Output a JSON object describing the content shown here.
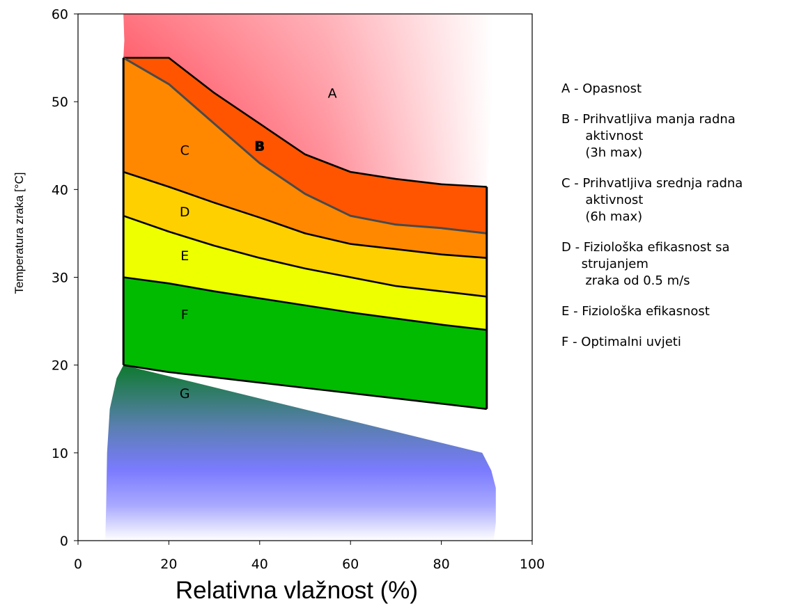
{
  "chart_data": {
    "type": "area",
    "title": "",
    "xlabel": "Relativna vlažnost (%)",
    "ylabel": "Temperatura zraka [°C]",
    "xlim": [
      0,
      100
    ],
    "ylim": [
      0,
      60
    ],
    "x_ticks": [
      "0",
      "20",
      "40",
      "60",
      "80",
      "100"
    ],
    "y_ticks": [
      "0",
      "10",
      "20",
      "30",
      "40",
      "50",
      "60"
    ],
    "grid": false,
    "legend_position": "right",
    "colors": {
      "A": "#ff2030",
      "B": "#ff5500",
      "C": "#ff8800",
      "D": "#ffd000",
      "E": "#eeff00",
      "F": "#00bb00",
      "G_top": "#117a33",
      "G_mid": "#7b7bff"
    },
    "boundaries": [
      {
        "name": "A/B",
        "points": [
          [
            10,
            55
          ],
          [
            20,
            55
          ],
          [
            30,
            51
          ],
          [
            40,
            47.5
          ],
          [
            50,
            44
          ],
          [
            60,
            42
          ],
          [
            70,
            41.2
          ],
          [
            80,
            40.6
          ],
          [
            90,
            40.3
          ]
        ]
      },
      {
        "name": "B/C",
        "points": [
          [
            10,
            55
          ],
          [
            20,
            52
          ],
          [
            30,
            47.5
          ],
          [
            40,
            43
          ],
          [
            50,
            39.5
          ],
          [
            60,
            37
          ],
          [
            70,
            36
          ],
          [
            80,
            35.6
          ],
          [
            90,
            35
          ]
        ]
      },
      {
        "name": "C/D",
        "points": [
          [
            10,
            42
          ],
          [
            20,
            40.3
          ],
          [
            30,
            38.5
          ],
          [
            40,
            36.8
          ],
          [
            50,
            35
          ],
          [
            60,
            33.8
          ],
          [
            70,
            33.2
          ],
          [
            80,
            32.6
          ],
          [
            90,
            32.2
          ]
        ]
      },
      {
        "name": "D/E",
        "points": [
          [
            10,
            37
          ],
          [
            20,
            35.2
          ],
          [
            30,
            33.6
          ],
          [
            40,
            32.2
          ],
          [
            50,
            31
          ],
          [
            60,
            30
          ],
          [
            70,
            29
          ],
          [
            80,
            28.4
          ],
          [
            90,
            27.8
          ]
        ]
      },
      {
        "name": "E/F",
        "points": [
          [
            10,
            30
          ],
          [
            20,
            29.3
          ],
          [
            30,
            28.4
          ],
          [
            40,
            27.6
          ],
          [
            50,
            26.8
          ],
          [
            60,
            26
          ],
          [
            70,
            25.3
          ],
          [
            80,
            24.6
          ],
          [
            90,
            24
          ]
        ]
      },
      {
        "name": "F/G",
        "points": [
          [
            10,
            20
          ],
          [
            20,
            19.2
          ],
          [
            30,
            18.6
          ],
          [
            40,
            18
          ],
          [
            50,
            17.4
          ],
          [
            60,
            16.8
          ],
          [
            70,
            16.2
          ],
          [
            80,
            15.6
          ],
          [
            90,
            15
          ]
        ]
      }
    ],
    "zones": [
      {
        "id": "A",
        "label": "A",
        "x": 56,
        "y": 51
      },
      {
        "id": "B",
        "label": "B",
        "x": 40,
        "y": 45
      },
      {
        "id": "C",
        "label": "C",
        "x": 23.5,
        "y": 44.5
      },
      {
        "id": "D",
        "label": "D",
        "x": 23.5,
        "y": 37.5
      },
      {
        "id": "E",
        "label": "E",
        "x": 23.5,
        "y": 32.5
      },
      {
        "id": "F",
        "label": "F",
        "x": 23.5,
        "y": 25.8
      },
      {
        "id": "G",
        "label": "G",
        "x": 23.5,
        "y": 16.8
      }
    ]
  },
  "legend": [
    {
      "lines": [
        "A - Opasnost"
      ]
    },
    {
      "lines": [
        "B - Prihvatljiva manja radna",
        "      aktivnost",
        "      (3h max)"
      ]
    },
    {
      "lines": [
        "C - Prihvatljiva srednja radna",
        "      aktivnost",
        "      (6h max)"
      ]
    },
    {
      "lines": [
        "D - Fiziološka efikasnost sa",
        "     strujanjem",
        "      zraka od 0.5 m/s"
      ]
    },
    {
      "lines": [
        "E - Fiziološka efikasnost"
      ]
    },
    {
      "lines": [
        "F - Optimalni uvjeti"
      ]
    }
  ]
}
